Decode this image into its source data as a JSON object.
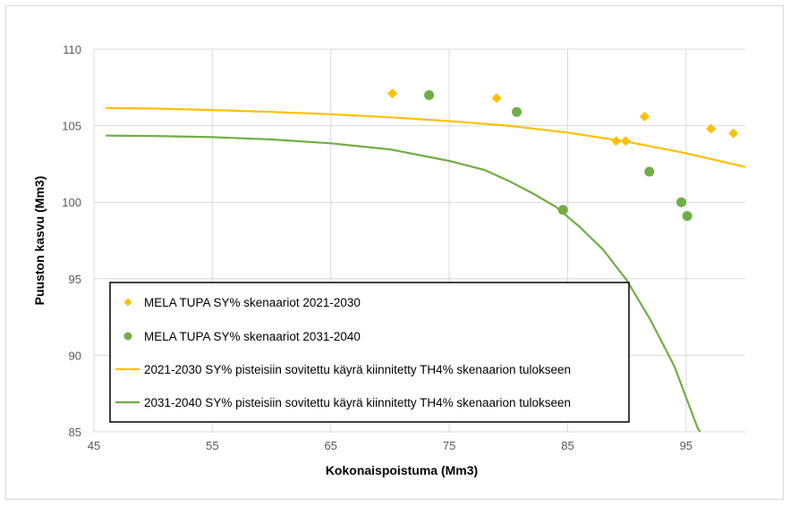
{
  "chart_data": {
    "type": "scatter",
    "title": "",
    "xlabel": "Kokonaispoistuma  (Mm3)",
    "ylabel": "Puuston kasvu (Mm3)",
    "xlim": [
      45,
      100
    ],
    "ylim": [
      85,
      110
    ],
    "xticks": [
      45,
      55,
      65,
      75,
      85,
      95
    ],
    "yticks": [
      85,
      90,
      95,
      100,
      105,
      110
    ],
    "grid": "vertical-and-horizontal",
    "legend_position": "bottom-left",
    "series": [
      {
        "name": "MELA TUPA SY% skenaariot 2021-2030",
        "kind": "markers",
        "marker": "diamond",
        "color": "#FFC000",
        "points": [
          [
            70.2,
            107.1
          ],
          [
            79.0,
            106.8
          ],
          [
            89.1,
            104.0
          ],
          [
            89.9,
            104.0
          ],
          [
            91.5,
            105.6
          ],
          [
            97.1,
            104.8
          ],
          [
            99.0,
            104.5
          ]
        ]
      },
      {
        "name": "MELA TUPA SY% skenaariot 2031-2040",
        "kind": "markers",
        "marker": "circle",
        "color": "#70AD47",
        "points": [
          [
            73.3,
            107.0
          ],
          [
            80.7,
            105.9
          ],
          [
            84.6,
            99.5
          ],
          [
            91.9,
            102.0
          ],
          [
            94.6,
            100.0
          ],
          [
            95.1,
            99.1
          ]
        ]
      },
      {
        "name": "2021-2030 SY% pisteisiin sovitettu käyrä kiinnitetty TH4% skenaarion tulokseen",
        "kind": "line",
        "color": "#FFC000",
        "points": [
          [
            46,
            106.15
          ],
          [
            50,
            106.12
          ],
          [
            55,
            106.02
          ],
          [
            60,
            105.9
          ],
          [
            65,
            105.75
          ],
          [
            70,
            105.55
          ],
          [
            75,
            105.3
          ],
          [
            80,
            105.0
          ],
          [
            85,
            104.55
          ],
          [
            90,
            103.95
          ],
          [
            95,
            103.2
          ],
          [
            100,
            102.3
          ]
        ]
      },
      {
        "name": "2031-2040 SY% pisteisiin sovitettu käyrä kiinnitetty TH4% skenaarion tulokseen",
        "kind": "line",
        "color": "#70AD47",
        "points": [
          [
            46,
            104.35
          ],
          [
            50,
            104.33
          ],
          [
            55,
            104.25
          ],
          [
            60,
            104.1
          ],
          [
            65,
            103.85
          ],
          [
            70,
            103.45
          ],
          [
            75,
            102.7
          ],
          [
            78,
            102.1
          ],
          [
            80,
            101.4
          ],
          [
            82,
            100.6
          ],
          [
            84,
            99.7
          ],
          [
            86,
            98.4
          ],
          [
            88,
            96.9
          ],
          [
            90,
            94.9
          ],
          [
            92,
            92.3
          ],
          [
            94,
            89.3
          ],
          [
            96,
            85.2
          ],
          [
            96.2,
            85.0
          ]
        ]
      }
    ]
  }
}
